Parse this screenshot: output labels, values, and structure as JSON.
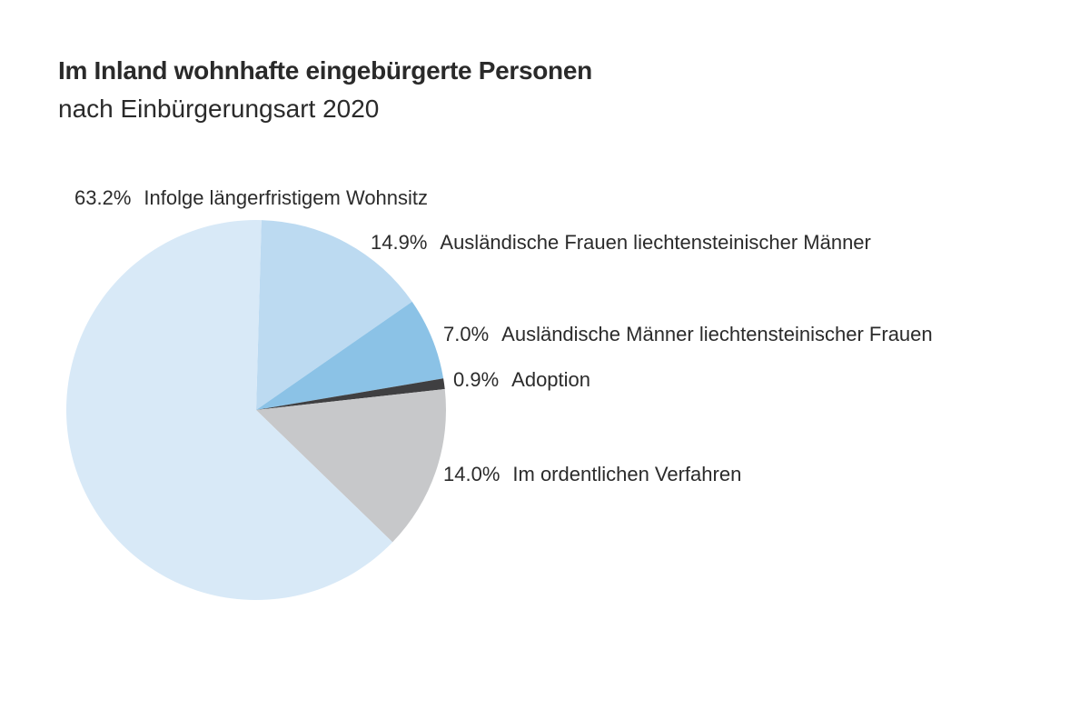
{
  "chart_data": {
    "type": "pie",
    "title": "Im Inland wohnhafte eingebürgerte Personen",
    "subtitle": "nach Einbürgerungsart 2020",
    "slices": [
      {
        "label": "Ausländische Frauen liechtensteinischer Männer",
        "value": 14.9,
        "value_label": "14.9%",
        "color": "#bcdaf1"
      },
      {
        "label": "Ausländische Männer liechtensteinischer Frauen",
        "value": 7.0,
        "value_label": "7.0%",
        "color": "#8bc2e6"
      },
      {
        "label": "Adoption",
        "value": 0.9,
        "value_label": "0.9%",
        "color": "#3f3f41"
      },
      {
        "label": "Im ordentlichen Verfahren",
        "value": 14.0,
        "value_label": "14.0%",
        "color": "#c7c8ca"
      },
      {
        "label": "Infolge längerfristigem Wohnsitz",
        "value": 63.2,
        "value_label": "63.2%",
        "color": "#d8e9f7"
      }
    ],
    "unit": "%",
    "direction": "clockwise from top"
  }
}
